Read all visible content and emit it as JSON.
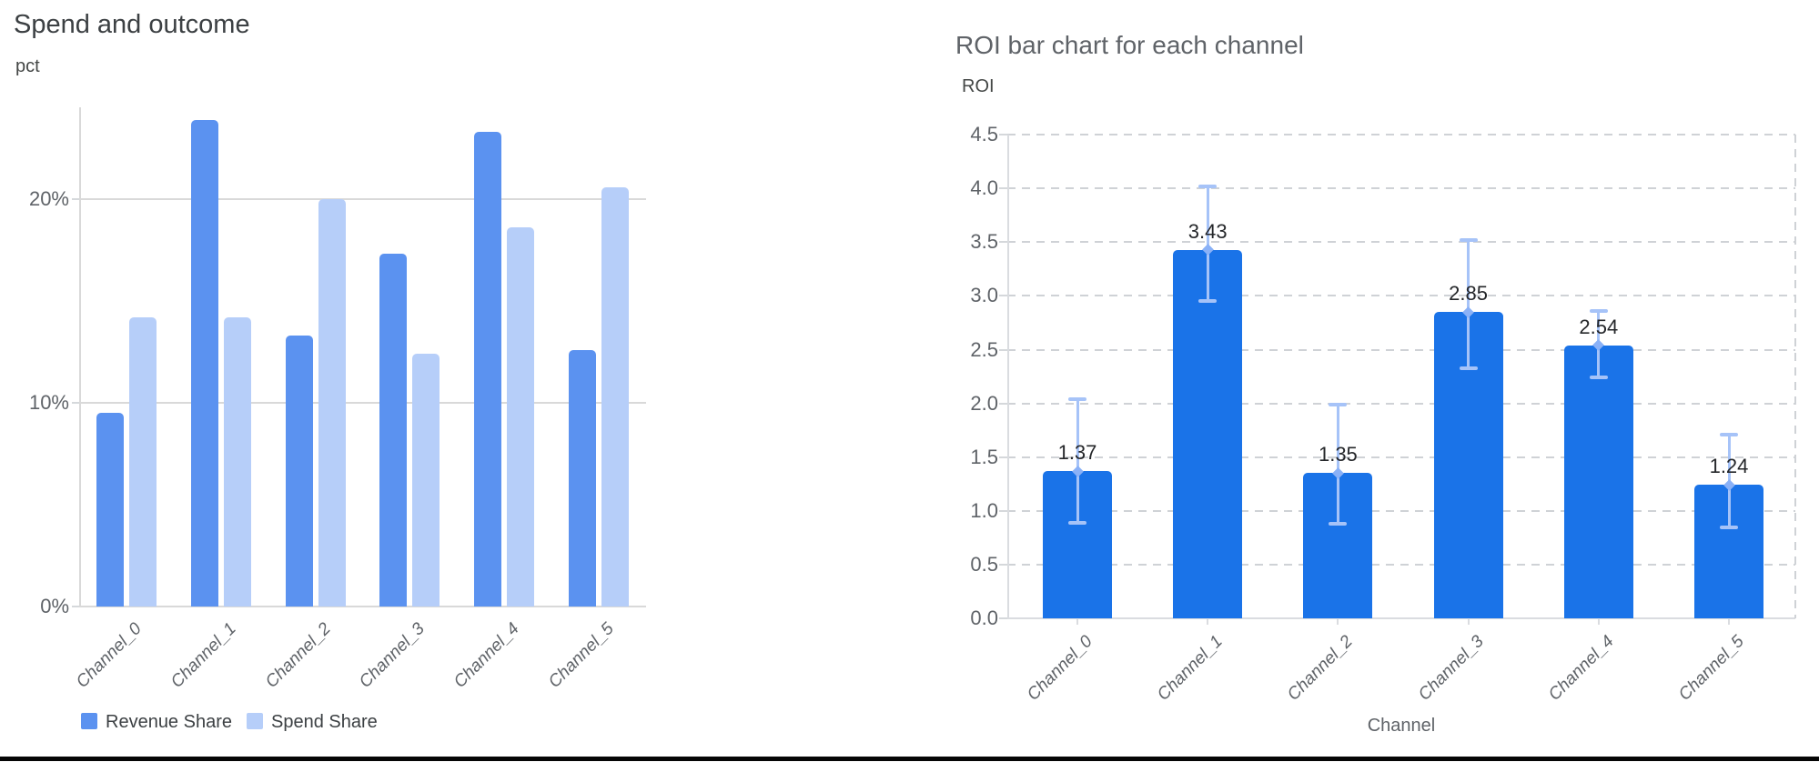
{
  "page": {
    "background": "#ffffff",
    "bottom_divider_color": "#050505"
  },
  "chart_data": [
    {
      "type": "bar",
      "title": "Spend and outcome",
      "ylabel": "pct",
      "xlabel": "",
      "categories": [
        "Channel_0",
        "Channel_1",
        "Channel_2",
        "Channel_3",
        "Channel_4",
        "Channel_5"
      ],
      "series": [
        {
          "name": "Revenue Share",
          "color": "#5b92f0",
          "values": [
            9.5,
            23.9,
            13.3,
            17.3,
            23.3,
            12.6
          ]
        },
        {
          "name": "Spend Share",
          "color": "#b6cef9",
          "values": [
            14.2,
            14.2,
            20.0,
            12.4,
            18.6,
            20.6
          ]
        }
      ],
      "unit": "%",
      "yticks": [
        {
          "value": 0,
          "label": "0%"
        },
        {
          "value": 10,
          "label": "10%"
        },
        {
          "value": 20,
          "label": "20%"
        }
      ],
      "ylim": [
        0,
        24.4
      ],
      "grid": "horizontal-solid",
      "legend_position": "bottom-left"
    },
    {
      "type": "bar",
      "title": "ROI bar chart for each channel",
      "ylabel": "ROI",
      "xlabel": "Channel",
      "categories": [
        "Channel_0",
        "Channel_1",
        "Channel_2",
        "Channel_3",
        "Channel_4",
        "Channel_5"
      ],
      "series": [
        {
          "name": "ROI",
          "color": "#1a73e8",
          "values": [
            1.37,
            3.43,
            1.35,
            2.85,
            2.54,
            1.24
          ]
        }
      ],
      "value_labels": [
        "1.37",
        "3.43",
        "1.35",
        "2.85",
        "2.54",
        "1.24"
      ],
      "error_bars": {
        "color": "#a6c3f8",
        "marker_color": "#8ab1f7",
        "low": [
          0.89,
          2.95,
          0.88,
          2.33,
          2.24,
          0.85
        ],
        "high": [
          2.04,
          4.02,
          1.99,
          3.52,
          2.86,
          1.71
        ]
      },
      "yticks": [
        {
          "value": 0.0,
          "label": "0.0"
        },
        {
          "value": 0.5,
          "label": "0.5"
        },
        {
          "value": 1.0,
          "label": "1.0"
        },
        {
          "value": 1.5,
          "label": "1.5"
        },
        {
          "value": 2.0,
          "label": "2.0"
        },
        {
          "value": 2.5,
          "label": "2.5"
        },
        {
          "value": 3.0,
          "label": "3.0"
        },
        {
          "value": 3.5,
          "label": "3.5"
        },
        {
          "value": 4.0,
          "label": "4.0"
        },
        {
          "value": 4.5,
          "label": "4.5"
        },
        {
          "value": 4.5,
          "label": "4.5"
        }
      ],
      "ylim": [
        0,
        4.5
      ],
      "grid": "horizontal-dashed",
      "legend_position": "none"
    }
  ]
}
